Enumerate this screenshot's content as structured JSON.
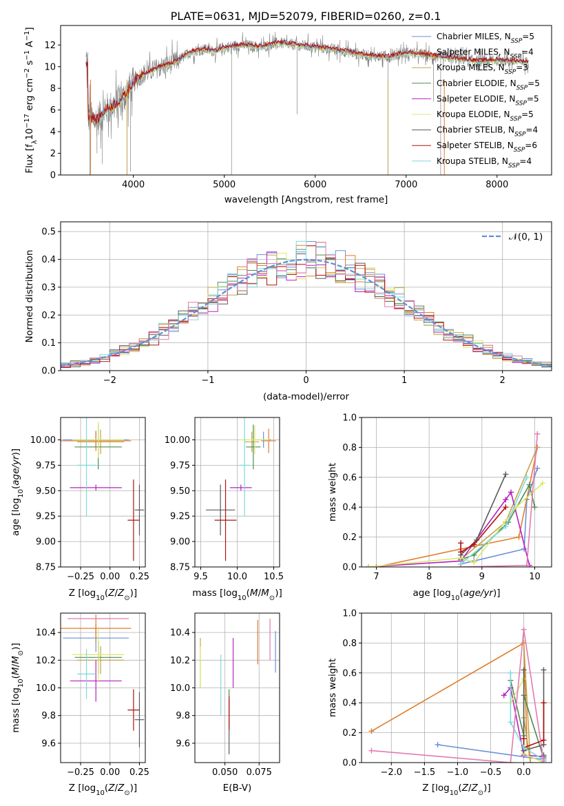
{
  "colors": {
    "chabrier_miles": "#6a8fd9",
    "salpeter_miles": "#e07c2a",
    "kroupa_miles": "#c4a24a",
    "chabrier_elodie": "#4e8a52",
    "salpeter_elodie": "#b620bf",
    "kroupa_elodie": "#d8e86c",
    "chabrier_stelib": "#5a5a5a",
    "salpeter_stelib": "#b01010",
    "kroupa_stelib": "#7fd8da",
    "normal": "#5b8fd6",
    "pink": "#e27ab0",
    "spectrum_gray": "#808080"
  },
  "chart_data": [
    {
      "id": "spectrum",
      "type": "line",
      "title": "PLATE=0631, MJD=52079, FIBERID=0260, z=0.1",
      "xlabel": "wavelength [Angstrom, rest frame]",
      "ylabel": "Flux [f_λ10^-17 erg cm^-2 s^-1 A^-1]",
      "xlim": [
        3200,
        8600
      ],
      "ylim": [
        0,
        13.8
      ],
      "xticks": [
        4000,
        5000,
        6000,
        7000,
        8000
      ],
      "yticks": [
        0,
        2,
        4,
        6,
        8,
        10,
        12
      ],
      "legend_position": "right",
      "legend": [
        {
          "label": "Chabrier MILES, N",
          "sub": "SSP",
          "eq": "=5",
          "color": "#6a8fd9"
        },
        {
          "label": "Salpeter MILES, N",
          "sub": "SSP",
          "eq": "=4",
          "color": "#e07c2a"
        },
        {
          "label": "Kroupa MILES, N",
          "sub": "SSP",
          "eq": "=3",
          "color": "#c4a24a"
        },
        {
          "label": "Chabrier ELODIE, N",
          "sub": "SSP",
          "eq": "=5",
          "color": "#4e8a52"
        },
        {
          "label": "Salpeter ELODIE, N",
          "sub": "SSP",
          "eq": "=5",
          "color": "#b620bf"
        },
        {
          "label": "Kroupa ELODIE, N",
          "sub": "SSP",
          "eq": "=5",
          "color": "#d8e86c"
        },
        {
          "label": "Chabrier STELIB, N",
          "sub": "SSP",
          "eq": "=4",
          "color": "#5a5a5a"
        },
        {
          "label": "Salpeter STELIB, N",
          "sub": "SSP",
          "eq": "=6",
          "color": "#b01010"
        },
        {
          "label": "Kroupa STELIB, N",
          "sub": "SSP",
          "eq": "=4",
          "color": "#7fd8da"
        }
      ],
      "continuum": [
        [
          3500,
          5.4
        ],
        [
          3600,
          5.0
        ],
        [
          3700,
          6.0
        ],
        [
          3800,
          6.5
        ],
        [
          3900,
          7.2
        ],
        [
          4000,
          8.5
        ],
        [
          4100,
          9.3
        ],
        [
          4200,
          9.6
        ],
        [
          4300,
          10.0
        ],
        [
          4400,
          10.2
        ],
        [
          4500,
          10.6
        ],
        [
          4600,
          11.2
        ],
        [
          4700,
          11.5
        ],
        [
          4800,
          11.6
        ],
        [
          4900,
          11.4
        ],
        [
          5000,
          11.8
        ],
        [
          5200,
          12.0
        ],
        [
          5400,
          11.8
        ],
        [
          5600,
          12.2
        ],
        [
          5800,
          12.0
        ],
        [
          6000,
          11.8
        ],
        [
          6200,
          11.6
        ],
        [
          6400,
          11.3
        ],
        [
          6600,
          11.0
        ],
        [
          6800,
          10.9
        ],
        [
          7000,
          11.3
        ],
        [
          7200,
          11.1
        ],
        [
          7400,
          10.9
        ],
        [
          7600,
          10.7
        ],
        [
          7800,
          10.5
        ],
        [
          8000,
          10.6
        ],
        [
          8200,
          10.5
        ],
        [
          8350,
          10.4
        ]
      ]
    },
    {
      "id": "residuals",
      "type": "bar",
      "xlabel": "(data-model)/error",
      "ylabel": "Normed distribution",
      "xlim": [
        -2.5,
        2.5
      ],
      "ylim": [
        0,
        0.535
      ],
      "xticks": [
        -2,
        -1,
        0,
        1,
        2
      ],
      "yticks": [
        0.0,
        0.1,
        0.2,
        0.3,
        0.4,
        0.5
      ],
      "bin_width": 0.1,
      "legend_label": "𝒩(0, 1)",
      "legend_position": "top-right",
      "grid": true
    },
    {
      "id": "z_age",
      "type": "scatter",
      "xlabel": "Z [log10(Z/Z⊙)]",
      "ylabel": "age  [log10(age/yr)]",
      "xlim": [
        -0.42,
        0.3
      ],
      "ylim": [
        8.75,
        10.22
      ],
      "xticks": [
        -0.25,
        0.0,
        0.25
      ],
      "yticks": [
        8.75,
        9.0,
        9.25,
        9.5,
        9.75,
        10.0
      ],
      "points": [
        {
          "x": -0.12,
          "y": 10.0,
          "xerr": 0.28,
          "yerr": 0.08,
          "c": "chabrier_miles"
        },
        {
          "x": -0.12,
          "y": 9.99,
          "xerr": 0.3,
          "yerr": 0.1,
          "c": "salpeter_miles"
        },
        {
          "x": -0.08,
          "y": 9.98,
          "xerr": 0.2,
          "yerr": 0.12,
          "c": "kroupa_miles"
        },
        {
          "x": -0.1,
          "y": 9.93,
          "xerr": 0.2,
          "yerr": 0.22,
          "c": "chabrier_elodie"
        },
        {
          "x": -0.12,
          "y": 9.53,
          "xerr": 0.22,
          "yerr": 0.03,
          "c": "salpeter_elodie"
        },
        {
          "x": -0.1,
          "y": 10.0,
          "xerr": 0.22,
          "yerr": 0.18,
          "c": "kroupa_elodie"
        },
        {
          "x": 0.25,
          "y": 9.31,
          "xerr": 0.04,
          "yerr": 0.25,
          "c": "chabrier_stelib"
        },
        {
          "x": 0.2,
          "y": 9.21,
          "xerr": 0.05,
          "yerr": 0.4,
          "c": "salpeter_stelib"
        },
        {
          "x": -0.2,
          "y": 9.75,
          "xerr": 0.08,
          "yerr": 0.5,
          "c": "kroupa_stelib"
        }
      ],
      "grid": true
    },
    {
      "id": "mass_age",
      "type": "scatter",
      "xlabel": "mass [log10(M/M⊙)]",
      "ylabel": "",
      "xlim": [
        9.42,
        10.58
      ],
      "ylim": [
        8.75,
        10.22
      ],
      "xticks": [
        9.5,
        10.0,
        10.5
      ],
      "yticks": [
        8.75,
        9.0,
        9.25,
        9.5,
        9.75,
        10.0
      ],
      "points": [
        {
          "x": 10.36,
          "y": 10.0,
          "xerr": 0.1,
          "yerr": 0.08,
          "c": "chabrier_miles"
        },
        {
          "x": 10.43,
          "y": 9.99,
          "xerr": 0.1,
          "yerr": 0.12,
          "c": "salpeter_miles"
        },
        {
          "x": 10.2,
          "y": 9.98,
          "xerr": 0.1,
          "yerr": 0.1,
          "c": "kroupa_miles"
        },
        {
          "x": 10.22,
          "y": 9.93,
          "xerr": 0.1,
          "yerr": 0.22,
          "c": "chabrier_elodie"
        },
        {
          "x": 10.05,
          "y": 9.53,
          "xerr": 0.15,
          "yerr": 0.03,
          "c": "salpeter_elodie"
        },
        {
          "x": 10.24,
          "y": 10.0,
          "xerr": 0.2,
          "yerr": 0.14,
          "c": "kroupa_elodie"
        },
        {
          "x": 9.77,
          "y": 9.31,
          "xerr": 0.2,
          "yerr": 0.25,
          "c": "chabrier_stelib"
        },
        {
          "x": 9.84,
          "y": 9.21,
          "xerr": 0.15,
          "yerr": 0.4,
          "c": "salpeter_stelib"
        },
        {
          "x": 10.1,
          "y": 9.75,
          "xerr": 0.07,
          "yerr": 0.5,
          "c": "kroupa_stelib"
        }
      ],
      "grid": true
    },
    {
      "id": "age_weight",
      "type": "line",
      "xlabel": "age  [log10(age/yr)]",
      "ylabel": "mass weight",
      "xlim": [
        6.72,
        10.32
      ],
      "ylim": [
        0,
        1.0
      ],
      "xticks": [
        7,
        8,
        9,
        10
      ],
      "yticks": [
        0.0,
        0.2,
        0.4,
        0.6,
        0.8,
        1.0
      ],
      "series": [
        {
          "c": "chabrier_miles",
          "points": [
            [
              8.6,
              0.02
            ],
            [
              8.85,
              0.04
            ],
            [
              9.8,
              0.12
            ],
            [
              9.85,
              0.45
            ],
            [
              10.05,
              0.66
            ]
          ]
        },
        {
          "c": "salpeter_miles",
          "points": [
            [
              7.0,
              0.0
            ],
            [
              8.6,
              0.12
            ],
            [
              9.7,
              0.2
            ],
            [
              10.05,
              0.8
            ]
          ]
        },
        {
          "c": "kroupa_miles",
          "points": [
            [
              8.6,
              0.05
            ],
            [
              9.45,
              0.3
            ],
            [
              10.05,
              0.8
            ]
          ]
        },
        {
          "c": "chabrier_elodie",
          "points": [
            [
              8.6,
              0.05
            ],
            [
              8.85,
              0.08
            ],
            [
              9.5,
              0.3
            ],
            [
              9.9,
              0.55
            ],
            [
              10.0,
              0.4
            ]
          ]
        },
        {
          "c": "salpeter_elodie",
          "points": [
            [
              6.85,
              0.0
            ],
            [
              8.6,
              0.04
            ],
            [
              9.45,
              0.45
            ],
            [
              9.55,
              0.5
            ],
            [
              9.9,
              0.01
            ]
          ]
        },
        {
          "c": "kroupa_elodie",
          "points": [
            [
              6.85,
              0.0
            ],
            [
              8.6,
              0.06
            ],
            [
              8.85,
              0.03
            ],
            [
              9.65,
              0.4
            ],
            [
              10.15,
              0.56
            ]
          ]
        },
        {
          "c": "chabrier_stelib",
          "points": [
            [
              8.6,
              0.08
            ],
            [
              8.9,
              0.18
            ],
            [
              9.45,
              0.62
            ]
          ]
        },
        {
          "c": "salpeter_stelib",
          "points": [
            [
              8.6,
              0.16
            ],
            [
              8.6,
              0.1
            ],
            [
              8.85,
              0.15
            ],
            [
              9.45,
              0.4
            ]
          ]
        },
        {
          "c": "kroupa_stelib",
          "points": [
            [
              8.6,
              0.02
            ],
            [
              9.45,
              0.27
            ],
            [
              9.85,
              0.6
            ]
          ]
        },
        {
          "c": "pink",
          "points": [
            [
              8.6,
              0.0
            ],
            [
              9.85,
              0.01
            ],
            [
              10.05,
              0.89
            ]
          ]
        }
      ],
      "grid": true
    },
    {
      "id": "z_mass",
      "type": "scatter",
      "xlabel": "Z [log10(Z/Z⊙)]",
      "ylabel": "mass [log10(M/M⊙)]",
      "xlim": [
        -0.42,
        0.3
      ],
      "ylim": [
        9.46,
        10.54
      ],
      "xticks": [
        -0.25,
        0.0,
        0.25
      ],
      "yticks": [
        9.6,
        9.8,
        10.0,
        10.2,
        10.4
      ],
      "points": [
        {
          "x": -0.12,
          "y": 10.36,
          "xerr": 0.28,
          "yerr": 0.1,
          "c": "chabrier_miles"
        },
        {
          "x": -0.12,
          "y": 10.43,
          "xerr": 0.3,
          "yerr": 0.1,
          "c": "salpeter_miles"
        },
        {
          "x": -0.08,
          "y": 10.2,
          "xerr": 0.2,
          "yerr": 0.1,
          "c": "kroupa_miles"
        },
        {
          "x": -0.1,
          "y": 10.22,
          "xerr": 0.2,
          "yerr": 0.12,
          "c": "chabrier_elodie"
        },
        {
          "x": -0.12,
          "y": 10.05,
          "xerr": 0.22,
          "yerr": 0.15,
          "c": "salpeter_elodie"
        },
        {
          "x": -0.1,
          "y": 10.24,
          "xerr": 0.22,
          "yerr": 0.2,
          "c": "kroupa_elodie"
        },
        {
          "x": 0.25,
          "y": 9.77,
          "xerr": 0.04,
          "yerr": 0.2,
          "c": "chabrier_stelib"
        },
        {
          "x": 0.2,
          "y": 9.84,
          "xerr": 0.05,
          "yerr": 0.15,
          "c": "salpeter_stelib"
        },
        {
          "x": -0.2,
          "y": 10.1,
          "xerr": 0.08,
          "yerr": 0.18,
          "c": "kroupa_stelib"
        },
        {
          "x": -0.1,
          "y": 10.5,
          "xerr": 0.26,
          "yerr": 0.0,
          "c": "pink"
        }
      ],
      "grid": true
    },
    {
      "id": "ebv_mass",
      "type": "scatter",
      "xlabel": "E(B-V)",
      "ylabel": "",
      "xlim": [
        0.028,
        0.09
      ],
      "ylim": [
        9.46,
        10.54
      ],
      "xticks": [
        0.05,
        0.075
      ],
      "yticks": [
        9.6,
        9.8,
        10.0,
        10.2,
        10.4
      ],
      "points": [
        {
          "x": 0.087,
          "y": 10.26,
          "yerr": 0.15,
          "c": "chabrier_miles"
        },
        {
          "x": 0.074,
          "y": 10.33,
          "yerr": 0.16,
          "c": "salpeter_miles"
        },
        {
          "x": 0.032,
          "y": 10.18,
          "yerr": 0.18,
          "c": "kroupa_miles"
        },
        {
          "x": 0.053,
          "y": 9.84,
          "yerr": 0.15,
          "c": "chabrier_elodie"
        },
        {
          "x": 0.056,
          "y": 10.18,
          "yerr": 0.18,
          "c": "salpeter_elodie"
        },
        {
          "x": 0.032,
          "y": 10.15,
          "yerr": 0.15,
          "c": "kroupa_elodie"
        },
        {
          "x": 0.053,
          "y": 9.72,
          "yerr": 0.2,
          "c": "chabrier_stelib"
        },
        {
          "x": 0.053,
          "y": 9.82,
          "yerr": 0.12,
          "c": "salpeter_stelib"
        },
        {
          "x": 0.047,
          "y": 10.02,
          "yerr": 0.22,
          "c": "kroupa_stelib"
        },
        {
          "x": 0.083,
          "y": 10.35,
          "yerr": 0.15,
          "c": "pink"
        }
      ],
      "grid": true
    },
    {
      "id": "z_weight",
      "type": "line",
      "xlabel": "Z [log10(Z/Z⊙)]",
      "ylabel": "mass weight",
      "xlim": [
        -2.45,
        0.42
      ],
      "ylim": [
        0,
        1.0
      ],
      "xticks": [
        -2.0,
        -1.5,
        -1.0,
        -0.5,
        0.0
      ],
      "yticks": [
        0.0,
        0.2,
        0.4,
        0.6,
        0.8,
        1.0
      ],
      "series": [
        {
          "c": "chabrier_miles",
          "points": [
            [
              -1.3,
              0.12
            ],
            [
              0.3,
              0.02
            ]
          ]
        },
        {
          "c": "salpeter_miles",
          "points": [
            [
              -2.3,
              0.21
            ],
            [
              0.0,
              0.8
            ],
            [
              0.05,
              0.1
            ]
          ]
        },
        {
          "c": "kroupa_miles",
          "points": [
            [
              0.0,
              0.8
            ],
            [
              0.1,
              0.0
            ],
            [
              0.0,
              0.3
            ]
          ]
        },
        {
          "c": "chabrier_elodie",
          "points": [
            [
              -0.2,
              0.55
            ],
            [
              0.0,
              0.18
            ],
            [
              0.0,
              0.45
            ],
            [
              0.3,
              0.03
            ],
            [
              0.3,
              0.05
            ]
          ]
        },
        {
          "c": "salpeter_elodie",
          "points": [
            [
              -0.3,
              0.45
            ],
            [
              -0.2,
              0.5
            ],
            [
              0.0,
              0.05
            ],
            [
              0.3,
              0.04
            ]
          ]
        },
        {
          "c": "kroupa_elodie",
          "points": [
            [
              -0.2,
              0.4
            ],
            [
              0.0,
              0.56
            ],
            [
              0.0,
              0.06
            ],
            [
              0.3,
              0.0
            ]
          ]
        },
        {
          "c": "chabrier_stelib",
          "points": [
            [
              0.0,
              0.62
            ],
            [
              0.0,
              0.08
            ],
            [
              0.3,
              0.12
            ],
            [
              0.3,
              0.62
            ]
          ]
        },
        {
          "c": "salpeter_stelib",
          "points": [
            [
              0.0,
              0.16
            ],
            [
              0.0,
              0.1
            ],
            [
              0.3,
              0.15
            ],
            [
              0.3,
              0.4
            ]
          ]
        },
        {
          "c": "kroupa_stelib",
          "points": [
            [
              -0.2,
              0.6
            ],
            [
              -0.2,
              0.27
            ],
            [
              0.0,
              0.1
            ],
            [
              0.3,
              0.02
            ]
          ]
        },
        {
          "c": "pink",
          "points": [
            [
              -2.3,
              0.08
            ],
            [
              -0.2,
              0.0
            ],
            [
              0.0,
              0.89
            ],
            [
              0.3,
              0.01
            ]
          ]
        }
      ],
      "grid": true
    }
  ]
}
